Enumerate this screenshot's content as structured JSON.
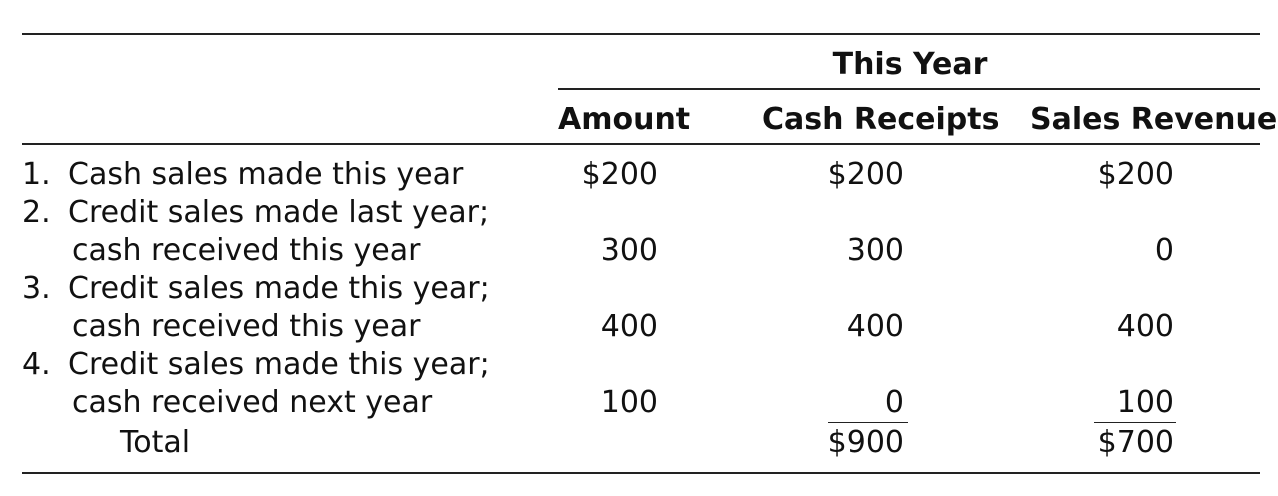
{
  "header": {
    "group_label": "This Year",
    "columns": [
      "Amount",
      "Cash Receipts",
      "Sales Revenue"
    ]
  },
  "rows": [
    {
      "num": "1.",
      "line1": "Cash sales made this year",
      "line2": "",
      "amount": "$200",
      "cash_receipts": "$200",
      "sales_revenue": "$200"
    },
    {
      "num": "2.",
      "line1": "Credit sales made last year;",
      "line2": "cash received this year",
      "amount": "300",
      "cash_receipts": "300",
      "sales_revenue": "0"
    },
    {
      "num": "3.",
      "line1": "Credit sales made this year;",
      "line2": "cash received this year",
      "amount": "400",
      "cash_receipts": "400",
      "sales_revenue": "400"
    },
    {
      "num": "4.",
      "line1": "Credit sales made this year;",
      "line2": "cash received next year",
      "amount": "100",
      "cash_receipts": "0",
      "sales_revenue": "100"
    }
  ],
  "total": {
    "label": "Total",
    "cash_receipts": "$900",
    "sales_revenue": "$700"
  }
}
